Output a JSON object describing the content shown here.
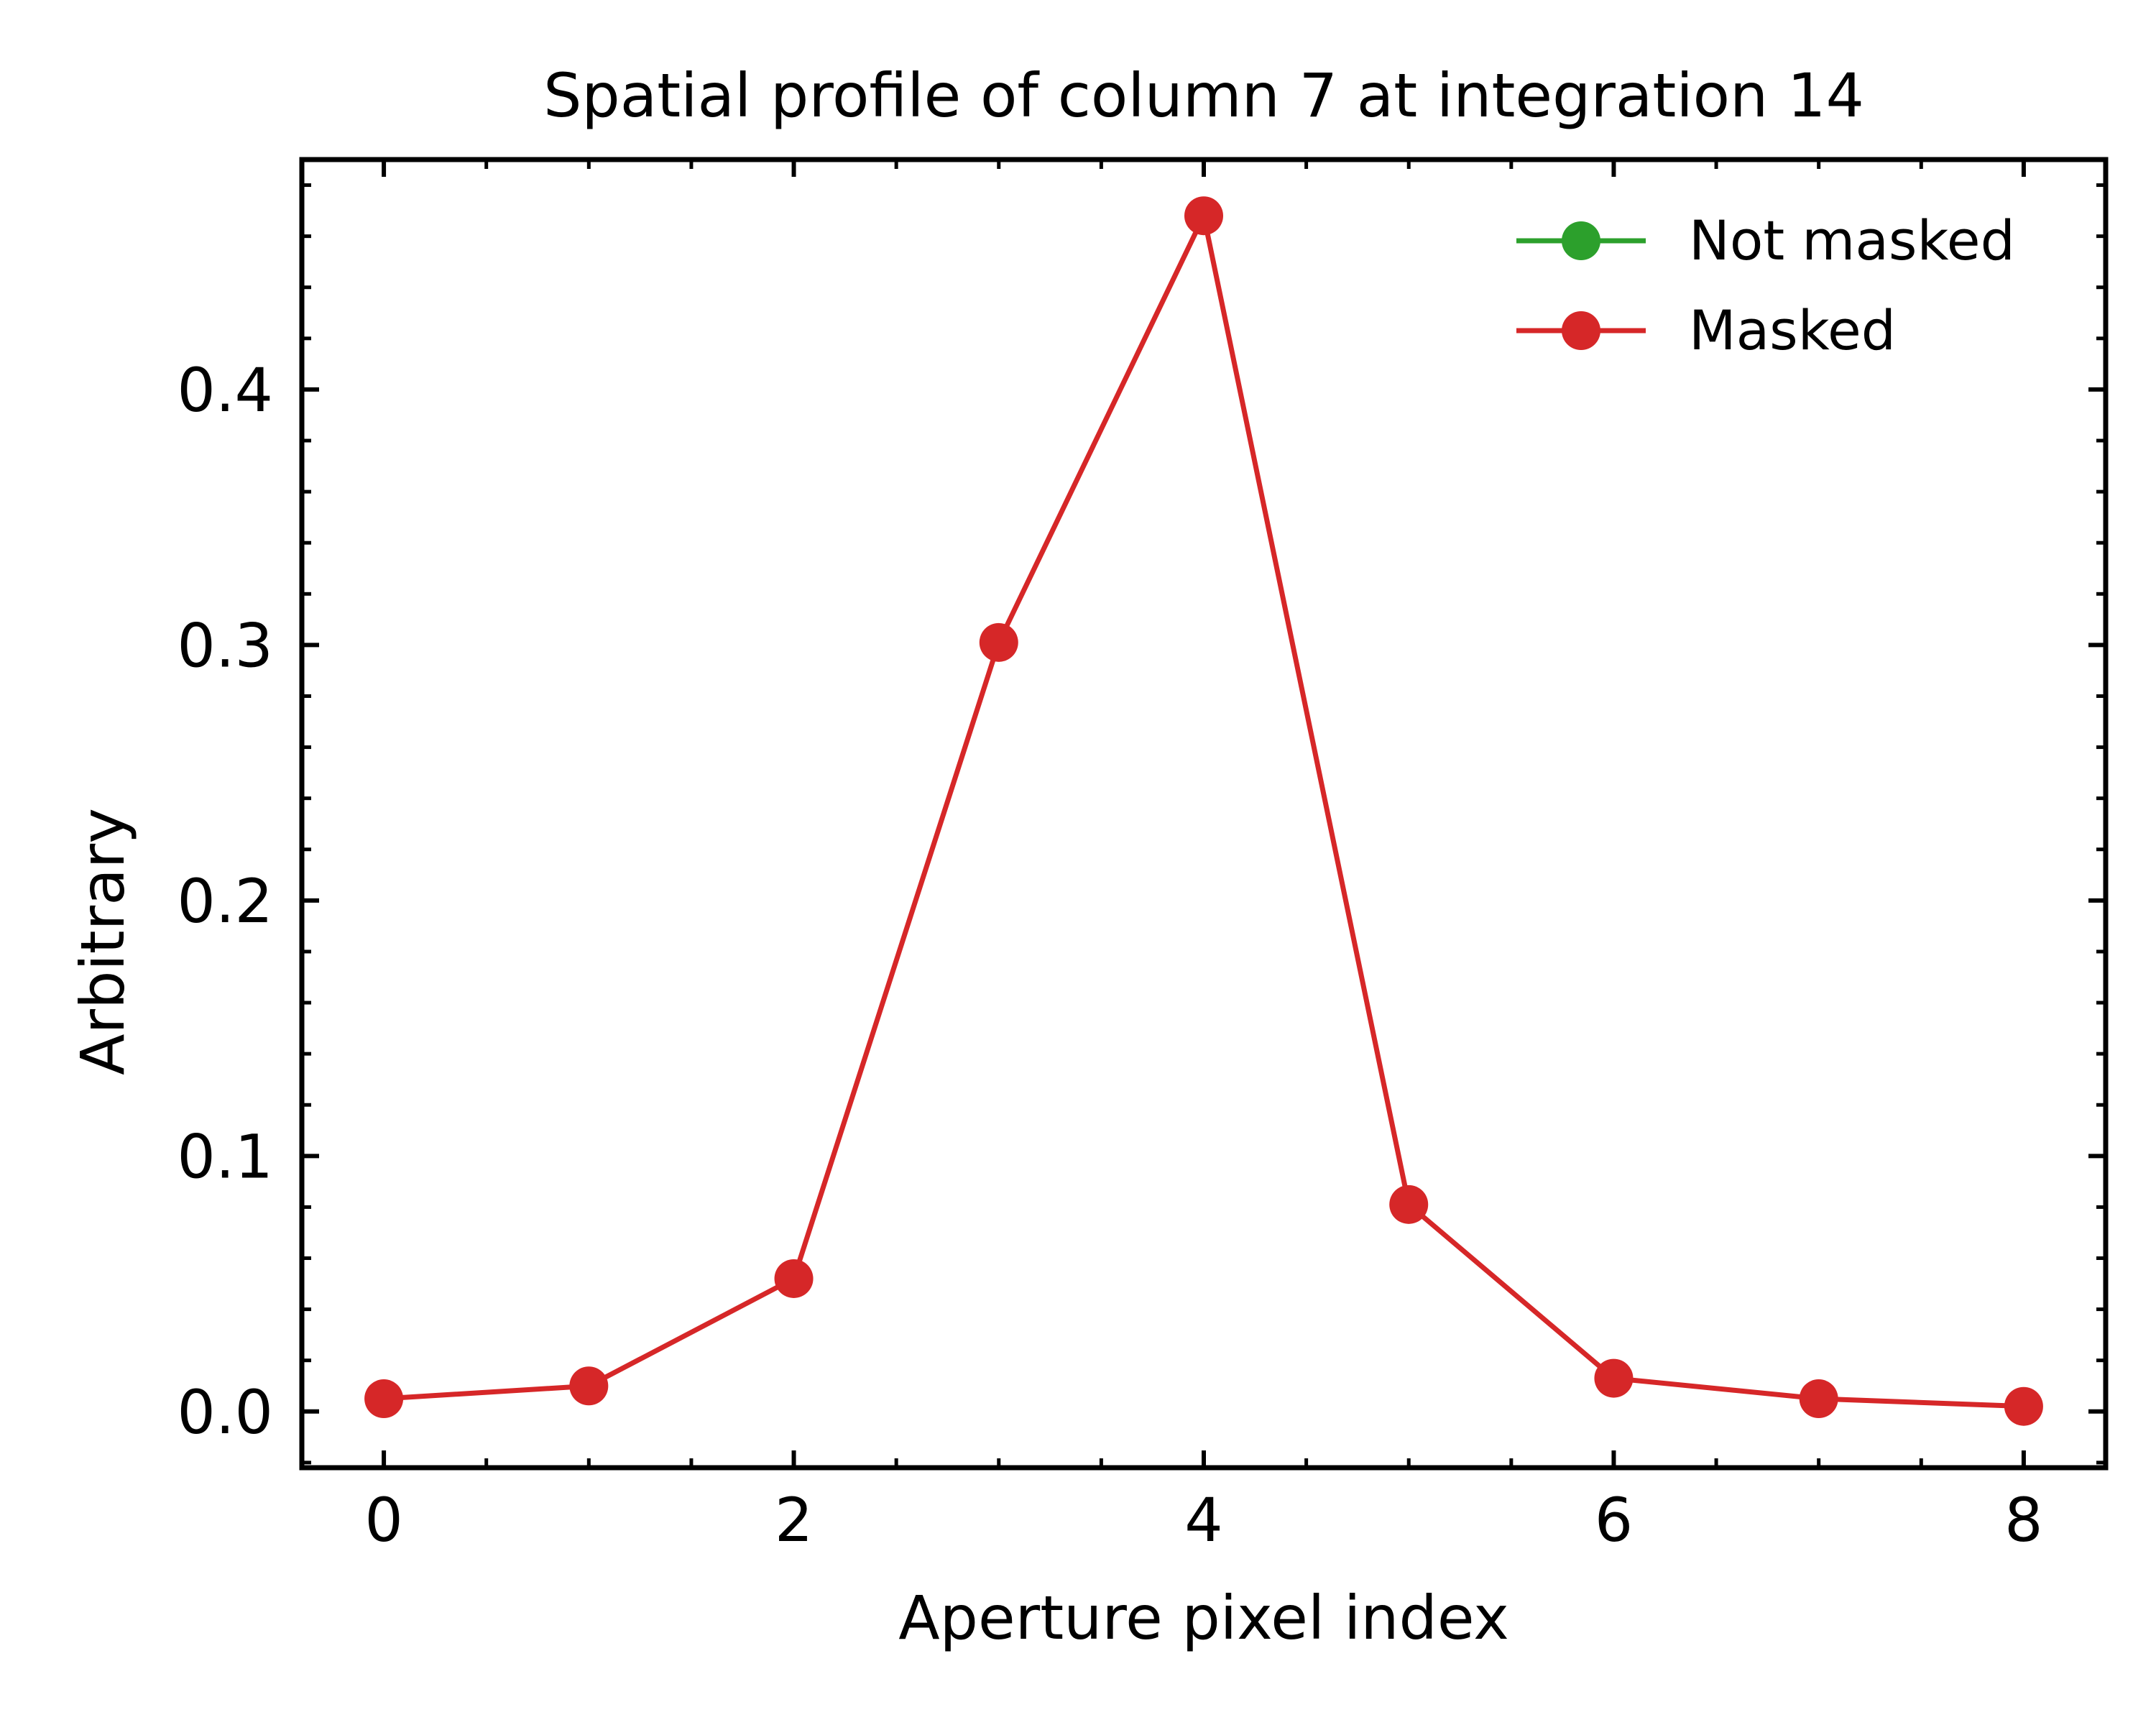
{
  "chart_data": {
    "type": "line",
    "title": "Spatial profile of column 7 at integration 14",
    "xlabel": "Aperture pixel index",
    "ylabel": "Arbitrary",
    "xlim": [
      -0.4,
      8.4
    ],
    "ylim": [
      -0.022,
      0.49
    ],
    "x_ticks": [
      0,
      2,
      4,
      6,
      8
    ],
    "x_tick_labels": [
      "0",
      "2",
      "4",
      "6",
      "8"
    ],
    "y_ticks": [
      0.0,
      0.1,
      0.2,
      0.3,
      0.4
    ],
    "y_tick_labels": [
      "0.0",
      "0.1",
      "0.2",
      "0.3",
      "0.4"
    ],
    "x_minor_step": 0.5,
    "y_minor_step": 0.02,
    "grid": false,
    "legend_position": "top-right",
    "x": [
      0,
      1,
      2,
      3,
      4,
      5,
      6,
      7,
      8
    ],
    "series": [
      {
        "name": "Not masked",
        "color": "#2ca02c",
        "values": [
          null,
          null,
          null,
          null,
          null,
          null,
          null,
          null,
          null
        ]
      },
      {
        "name": "Masked",
        "color": "#d62728",
        "values": [
          0.005,
          0.01,
          0.052,
          0.301,
          0.468,
          0.081,
          0.013,
          0.005,
          0.002
        ]
      }
    ]
  }
}
